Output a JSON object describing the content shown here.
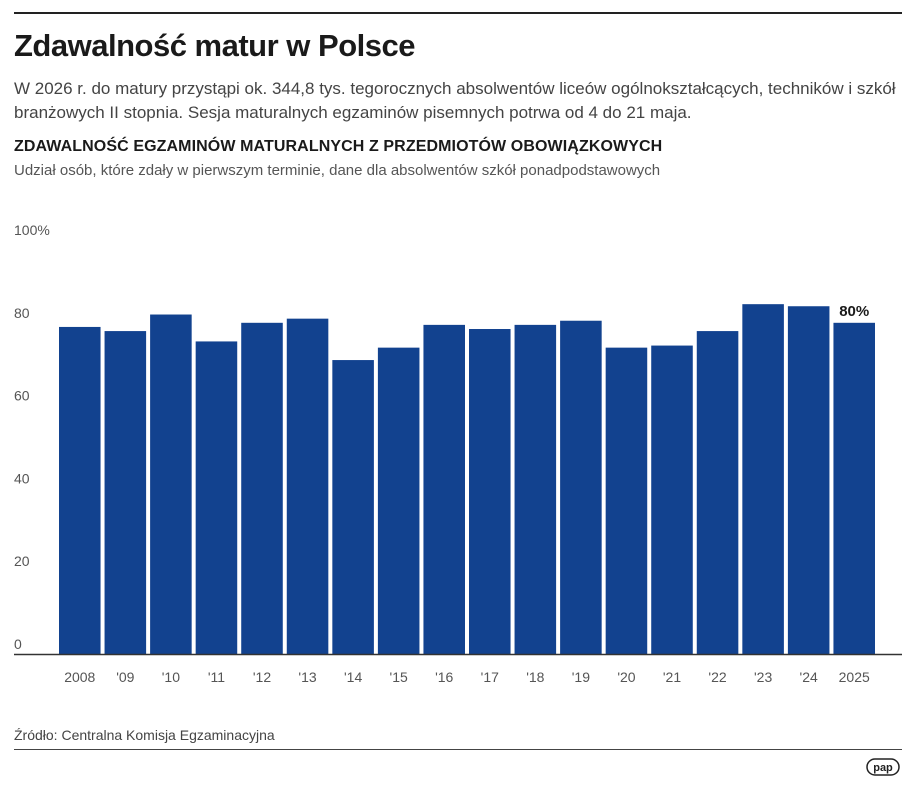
{
  "header": {
    "title": "Zdawalność matur w Polsce",
    "intro": "W 2026 r. do matury przystąpi ok. 344,8 tys. tegorocznych absolwentów liceów ogólnokształcących, techników i szkół branżowych II stopnia. Sesja maturalnych egzaminów pisemnych potrwa od 4 do 21 maja."
  },
  "chart_data": {
    "type": "bar",
    "title": "ZDAWALNOŚĆ EGZAMINÓW MATURALNYCH Z PRZEDMIOTÓW OBOWIĄZKOWYCH",
    "subtitle": "Udział osób, które zdały w pierwszym terminie, dane dla absolwentów szkół ponadpodstawowych",
    "categories": [
      "2008",
      "'09",
      "'10",
      "'11",
      "'12",
      "'13",
      "'14",
      "'15",
      "'16",
      "'17",
      "'18",
      "'19",
      "'20",
      "'21",
      "'22",
      "'23",
      "'24",
      "2025"
    ],
    "values": [
      79,
      78,
      82,
      75.5,
      80,
      81,
      71,
      74,
      79.5,
      78.5,
      79.5,
      80.5,
      74,
      74.5,
      78,
      84.5,
      84,
      80
    ],
    "y_ticks": [
      "0",
      "20",
      "40",
      "60",
      "80",
      "100%"
    ],
    "y_tick_values": [
      0,
      20,
      40,
      60,
      80,
      100
    ],
    "ylim": [
      0,
      100
    ],
    "data_labels": [
      {
        "category": "2025",
        "text": "80%"
      }
    ],
    "bar_color": "#12428f",
    "grid": false,
    "legend": "none"
  },
  "footer": {
    "source": "Źródło: Centralna Komisja Egzaminacyjna",
    "logo_text": "pap"
  }
}
